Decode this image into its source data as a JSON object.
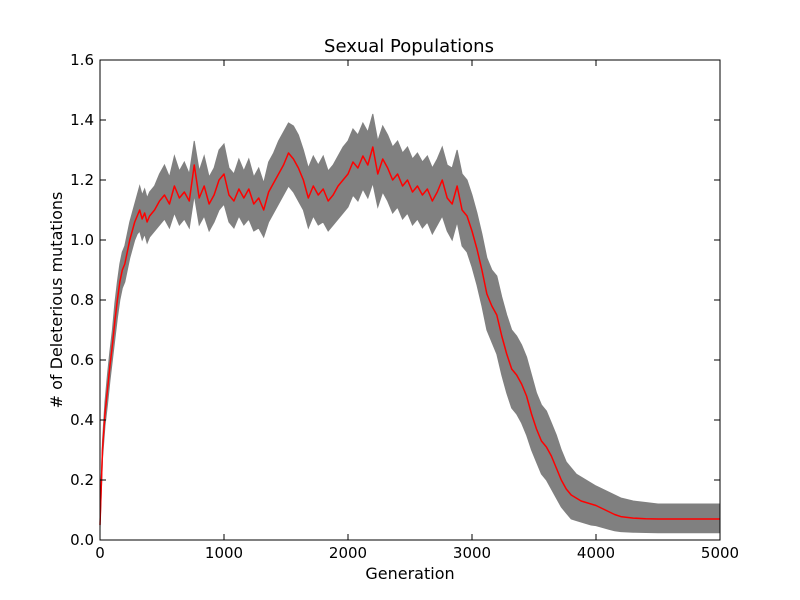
{
  "chart_data": {
    "type": "line",
    "title": "Sexual Populations",
    "xlabel": "Generation",
    "ylabel": "# of Deleterious mutations",
    "xlim": [
      0,
      5000
    ],
    "ylim": [
      0,
      1.6
    ],
    "x_ticks": [
      "0",
      "1000",
      "2000",
      "3000",
      "4000",
      "5000"
    ],
    "y_ticks": [
      "0.0",
      "0.2",
      "0.4",
      "0.6",
      "0.8",
      "1.0",
      "1.2",
      "1.4",
      "1.6"
    ],
    "grid": false,
    "colors": {
      "mean_line": "#ff0000",
      "band_fill": "#808080",
      "axes": "#000000",
      "background": "#ffffff"
    },
    "series": [
      {
        "kind": "mean",
        "x": [
          0,
          20,
          40,
          60,
          80,
          100,
          120,
          140,
          160,
          180,
          200,
          220,
          240,
          260,
          280,
          300,
          320,
          340,
          360,
          380,
          400,
          440,
          480,
          520,
          560,
          600,
          640,
          680,
          720,
          760,
          800,
          840,
          880,
          920,
          960,
          1000,
          1040,
          1080,
          1120,
          1160,
          1200,
          1240,
          1280,
          1320,
          1360,
          1400,
          1440,
          1480,
          1520,
          1560,
          1600,
          1640,
          1680,
          1720,
          1760,
          1800,
          1840,
          1880,
          1920,
          1960,
          2000,
          2040,
          2080,
          2120,
          2160,
          2200,
          2240,
          2280,
          2320,
          2360,
          2400,
          2440,
          2480,
          2520,
          2560,
          2600,
          2640,
          2680,
          2720,
          2760,
          2800,
          2840,
          2880,
          2920,
          2960,
          3000,
          3040,
          3080,
          3120,
          3160,
          3200,
          3240,
          3280,
          3320,
          3360,
          3400,
          3440,
          3480,
          3520,
          3560,
          3600,
          3640,
          3680,
          3720,
          3760,
          3800,
          3840,
          3880,
          3920,
          3960,
          4000,
          4050,
          4100,
          4150,
          4200,
          4300,
          4400,
          4500,
          4600,
          4700,
          4800,
          4900,
          5000
        ],
        "y": [
          0.05,
          0.3,
          0.42,
          0.5,
          0.58,
          0.65,
          0.73,
          0.8,
          0.86,
          0.9,
          0.92,
          0.96,
          1.0,
          1.03,
          1.06,
          1.08,
          1.1,
          1.07,
          1.09,
          1.06,
          1.08,
          1.1,
          1.13,
          1.15,
          1.12,
          1.18,
          1.14,
          1.16,
          1.13,
          1.25,
          1.14,
          1.18,
          1.12,
          1.15,
          1.2,
          1.22,
          1.15,
          1.13,
          1.17,
          1.14,
          1.17,
          1.12,
          1.14,
          1.1,
          1.16,
          1.19,
          1.22,
          1.25,
          1.29,
          1.27,
          1.24,
          1.2,
          1.14,
          1.18,
          1.15,
          1.17,
          1.13,
          1.15,
          1.18,
          1.2,
          1.22,
          1.26,
          1.24,
          1.28,
          1.25,
          1.31,
          1.22,
          1.27,
          1.24,
          1.2,
          1.22,
          1.18,
          1.2,
          1.16,
          1.18,
          1.15,
          1.17,
          1.13,
          1.16,
          1.2,
          1.14,
          1.12,
          1.18,
          1.1,
          1.08,
          1.03,
          0.97,
          0.9,
          0.82,
          0.78,
          0.75,
          0.68,
          0.62,
          0.57,
          0.55,
          0.52,
          0.48,
          0.42,
          0.37,
          0.33,
          0.31,
          0.28,
          0.24,
          0.2,
          0.17,
          0.15,
          0.14,
          0.13,
          0.125,
          0.12,
          0.115,
          0.105,
          0.095,
          0.085,
          0.078,
          0.073,
          0.071,
          0.07,
          0.07,
          0.07,
          0.07,
          0.07,
          0.07
        ]
      },
      {
        "kind": "band",
        "x": [
          0,
          20,
          40,
          60,
          80,
          100,
          120,
          140,
          160,
          180,
          200,
          220,
          240,
          260,
          280,
          300,
          320,
          340,
          360,
          380,
          400,
          440,
          480,
          520,
          560,
          600,
          640,
          680,
          720,
          760,
          800,
          840,
          880,
          920,
          960,
          1000,
          1040,
          1080,
          1120,
          1160,
          1200,
          1240,
          1280,
          1320,
          1360,
          1400,
          1440,
          1480,
          1520,
          1560,
          1600,
          1640,
          1680,
          1720,
          1760,
          1800,
          1840,
          1880,
          1920,
          1960,
          2000,
          2040,
          2080,
          2120,
          2160,
          2200,
          2240,
          2280,
          2320,
          2360,
          2400,
          2440,
          2480,
          2520,
          2560,
          2600,
          2640,
          2680,
          2720,
          2760,
          2800,
          2840,
          2880,
          2920,
          2960,
          3000,
          3040,
          3080,
          3120,
          3160,
          3200,
          3240,
          3280,
          3320,
          3360,
          3400,
          3440,
          3480,
          3520,
          3560,
          3600,
          3640,
          3680,
          3720,
          3760,
          3800,
          3840,
          3880,
          3920,
          3960,
          4000,
          4050,
          4100,
          4150,
          4200,
          4300,
          4400,
          4500,
          4600,
          4700,
          4800,
          4900,
          5000
        ],
        "lower": [
          0.04,
          0.27,
          0.38,
          0.45,
          0.53,
          0.6,
          0.67,
          0.74,
          0.8,
          0.84,
          0.86,
          0.9,
          0.94,
          0.97,
          1.0,
          1.02,
          1.03,
          1.0,
          1.02,
          0.99,
          1.01,
          1.03,
          1.05,
          1.07,
          1.04,
          1.09,
          1.05,
          1.07,
          1.04,
          1.15,
          1.05,
          1.08,
          1.03,
          1.06,
          1.1,
          1.12,
          1.06,
          1.04,
          1.08,
          1.05,
          1.07,
          1.03,
          1.04,
          1.01,
          1.06,
          1.09,
          1.12,
          1.15,
          1.18,
          1.16,
          1.13,
          1.1,
          1.04,
          1.08,
          1.05,
          1.06,
          1.03,
          1.05,
          1.07,
          1.09,
          1.11,
          1.15,
          1.13,
          1.17,
          1.14,
          1.19,
          1.11,
          1.16,
          1.13,
          1.09,
          1.11,
          1.07,
          1.09,
          1.05,
          1.07,
          1.04,
          1.06,
          1.02,
          1.05,
          1.08,
          1.03,
          1.0,
          1.06,
          0.98,
          0.96,
          0.91,
          0.85,
          0.78,
          0.7,
          0.66,
          0.62,
          0.55,
          0.49,
          0.44,
          0.42,
          0.39,
          0.35,
          0.3,
          0.26,
          0.22,
          0.2,
          0.17,
          0.14,
          0.11,
          0.09,
          0.07,
          0.065,
          0.06,
          0.055,
          0.05,
          0.048,
          0.042,
          0.036,
          0.031,
          0.028,
          0.026,
          0.025,
          0.024,
          0.024,
          0.024,
          0.024,
          0.024,
          0.024
        ],
        "upper": [
          0.06,
          0.33,
          0.46,
          0.55,
          0.63,
          0.7,
          0.79,
          0.86,
          0.92,
          0.96,
          0.98,
          1.02,
          1.06,
          1.09,
          1.12,
          1.15,
          1.18,
          1.15,
          1.17,
          1.14,
          1.16,
          1.18,
          1.22,
          1.25,
          1.21,
          1.28,
          1.23,
          1.26,
          1.22,
          1.33,
          1.23,
          1.28,
          1.21,
          1.24,
          1.3,
          1.32,
          1.24,
          1.22,
          1.27,
          1.23,
          1.27,
          1.21,
          1.24,
          1.19,
          1.26,
          1.29,
          1.33,
          1.36,
          1.39,
          1.38,
          1.35,
          1.3,
          1.24,
          1.28,
          1.25,
          1.28,
          1.23,
          1.25,
          1.28,
          1.31,
          1.33,
          1.37,
          1.35,
          1.39,
          1.36,
          1.42,
          1.33,
          1.38,
          1.35,
          1.31,
          1.33,
          1.29,
          1.31,
          1.27,
          1.29,
          1.26,
          1.28,
          1.24,
          1.27,
          1.31,
          1.25,
          1.24,
          1.3,
          1.22,
          1.2,
          1.15,
          1.09,
          1.02,
          0.94,
          0.9,
          0.88,
          0.81,
          0.75,
          0.7,
          0.68,
          0.65,
          0.61,
          0.55,
          0.49,
          0.45,
          0.43,
          0.39,
          0.35,
          0.3,
          0.26,
          0.24,
          0.22,
          0.21,
          0.2,
          0.19,
          0.18,
          0.17,
          0.16,
          0.15,
          0.14,
          0.13,
          0.125,
          0.12,
          0.12,
          0.12,
          0.12,
          0.12,
          0.12
        ]
      }
    ]
  }
}
